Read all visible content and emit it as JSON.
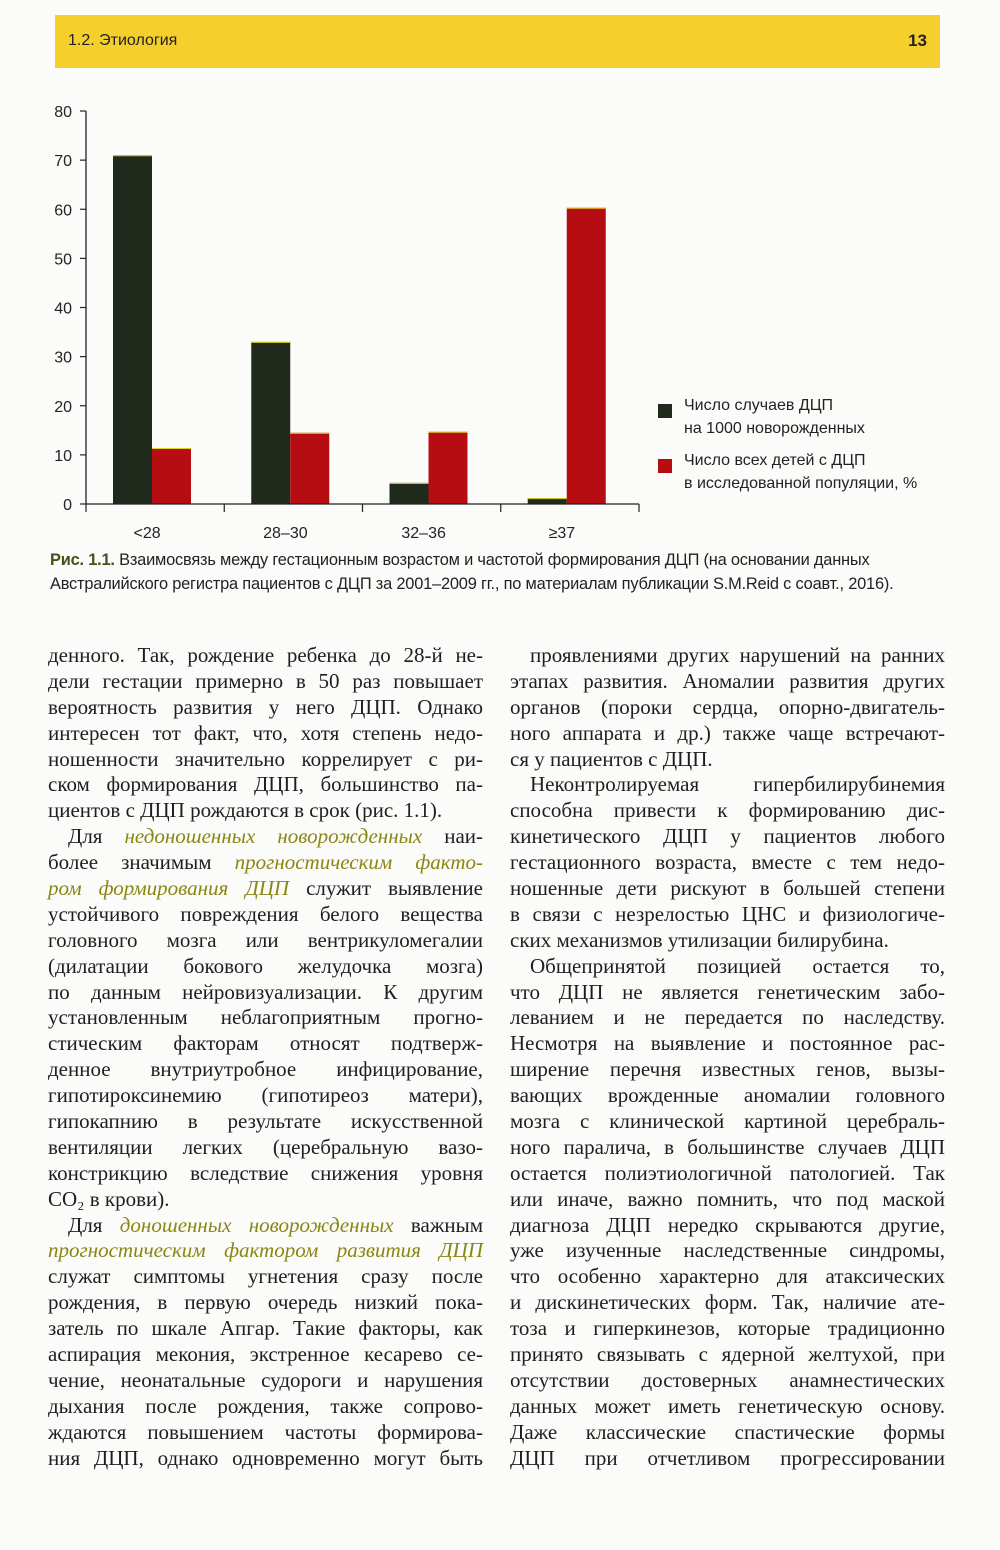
{
  "header": {
    "section": "1.2. Этиология",
    "page_number": "13",
    "band_color": "#f5d02c"
  },
  "chart_data": {
    "type": "bar",
    "categories": [
      "<28",
      "28–30",
      "32–36",
      "≥37"
    ],
    "series": [
      {
        "name": "Число случаев ДЦП на 1000 новорожденных",
        "color": "#1f2a1c",
        "values": [
          71,
          33,
          4.3,
          1.2
        ]
      },
      {
        "name": "Число всех детей с ДЦП в исследованной популяции, %",
        "color": "#b50d12",
        "values": [
          11.4,
          14.5,
          14.7,
          60.3
        ]
      }
    ],
    "yticks": [
      0,
      10,
      20,
      30,
      40,
      50,
      60,
      70,
      80
    ],
    "ylim": [
      0,
      80
    ],
    "grid": false,
    "legend_position": "right",
    "legend": [
      {
        "line1": "Число случаев ДЦП",
        "line2": "на 1000 новорожденных"
      },
      {
        "line1": "Число всех детей с ДЦП",
        "line2": "в исследованной популяции, %"
      }
    ]
  },
  "caption": {
    "label": "Рис. 1.1.",
    "text": " Взаимосвязь между гестационным возрастом и частотой формирования ДЦП (на основании данных Австралийского регистра пациентов с ДЦП за 2001–2009 гг., по материалам публикации S.M.Reid с соавт., 2016)."
  },
  "columns": [
    {
      "paragraphs": [
        {
          "lines": [
            "денного. Так, рождение ребенка до 28-й не-",
            "дели гестации примерно в 50 раз повышает",
            "вероятность развития у него ДЦП. Однако",
            "интересен тот факт, что, хотя степень недо-",
            "ношенности значительно коррелирует с ри-",
            "ском формирования ДЦП, большинство па-",
            "циентов с ДЦП рождаются в срок (рис. 1.1)."
          ]
        },
        {
          "lines": [
            [
              "Для ",
              {
                "em": "недоношенных новорожденных"
              },
              " наи-"
            ],
            [
              "более значимым ",
              {
                "em": "прогностическим факто-"
              }
            ],
            [
              {
                "em": "ром формирования ДЦП"
              },
              " служит выявление"
            ],
            "устойчивого повреждения белого вещества",
            "головного мозга или вентрикуломегалии",
            "(дилатации бокового желудочка мозга)",
            "по данным нейровизуализации. К другим",
            "установленным неблагоприятным прогно-",
            "стическим факторам относят подтверж-",
            "денное внутриутробное инфицирование,",
            "гипотироксинемию (гипотиреоз матери),",
            "гипокапнию в результате искусственной",
            "вентиляции легких (церебральную вазо-",
            "констрикцию вследствие снижения уровня",
            "CO₂ в крови)."
          ]
        },
        {
          "lines": [
            [
              "Для ",
              {
                "em": "доношенных новорожденных"
              },
              " важным"
            ],
            [
              {
                "em": "прогностическим фактором развития ДЦП"
              }
            ],
            "служат симптомы угнетения сразу после",
            "рождения, в первую очередь низкий пока-",
            "затель по шкале Апгар. Такие факторы, как",
            "аспирация мекония, экстренное кесарево се-",
            "чение, неонатальные судороги и нарушения",
            "дыхания после рождения, также сопрово-",
            "ждаются повышением частоты формирова-",
            "ния ДЦП, однако одновременно могут быть"
          ]
        }
      ]
    },
    {
      "paragraphs": [
        {
          "lines": [
            "проявлениями других нарушений на ранних",
            "этапах развития. Аномалии развития других",
            "органов (пороки сердца, опорно-двигатель-",
            "ного аппарата и др.) также чаще встречают-",
            "ся у пациентов с ДЦП."
          ]
        },
        {
          "lines": [
            "Неконтролируемая гипербилирубинемия",
            "способна привести к формированию дис-",
            "кинетического ДЦП у пациентов любого",
            "гестационного возраста, вместе с тем недо-",
            "ношенные дети рискуют в большей степени",
            "в связи с незрелостью ЦНС и физиологиче-",
            "ских механизмов утилизации билирубина."
          ]
        },
        {
          "lines": [
            "Общепринятой позицией остается то,",
            "что ДЦП не является генетическим забо-",
            "леванием и не передается по наследству.",
            "Несмотря на выявление и постоянное рас-",
            "ширение перечня известных генов, вызы-",
            "вающих врожденные аномалии головного",
            "мозга с клинической картиной церебраль-",
            "ного паралича, в большинстве случаев ДЦП",
            "остается полиэтиологичной патологией. Так",
            "или иначе, важно помнить, что под маской",
            "диагноза ДЦП нередко скрываются другие,",
            "уже изученные наследственные синдромы,",
            "что особенно характерно для атаксических",
            "и дискинетических форм. Так, наличие ате-",
            "тоза и гиперкинезов, которые традиционно",
            "принято связывать с ядерной желтухой, при",
            "отсутствии достоверных анамнестических",
            "данных может иметь генетическую основу.",
            "Даже классические спастические формы",
            "ДЦП при отчетливом прогрессировании"
          ]
        }
      ]
    }
  ]
}
